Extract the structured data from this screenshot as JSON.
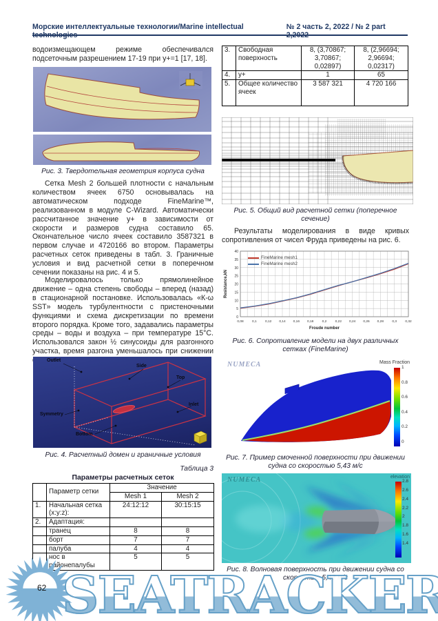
{
  "header": {
    "journal": "Морские интеллектуальные технологии/Marine intellectual technologies",
    "issue": "№ 2 часть 2, 2022 / № 2 part 2,2022"
  },
  "left_column": {
    "para_intro": "водоизмещающем режиме обеспечивался подсеточным разрешением 17-19 при y+=1 [17, 18].",
    "fig3_caption": "Рис. 3. Твердотельная геометрия корпуса судна",
    "para1": "Сетка Mesh 2 большей плотности с начальным количеством ячеек 6750 основывалась на автоматическом подходе FineMarine™, реализованном в модуле C-Wizard. Автоматически рассчитанное значение y+ в зависимости от скорости и размеров судна составило 65. Окончательное число ячеек составило 3587321 в первом случае и 4720166 во втором. Параметры расчетных сеток приведены в табл. 3. Граничные условия и вид расчетной сетки в поперечном сечении показаны на рис. 4 и 5.",
    "para2": "Моделировалось только прямолинейное движение – одна степень свободы – вперед (назад) в стационарной постановке. Использовалась «К-ω SST» модель турбулентности с пристеночными функциями и схема дискретизации по времени второго порядка. Кроме того, задавались параметры среды – воды и воздуха – при температуре 15°С. Использовался закон ½ синусоиды для разгонного участка, время разгона уменьшалось при снижении скорости.",
    "fig4_caption": "Рис. 4. Расчетный домен и граничные условия",
    "fig4_labels": {
      "outlet": "Outlet",
      "side": "Side",
      "top": "Top",
      "inlet": "Inlet",
      "symmetry": "Symmetry",
      "bottom": "Bottom"
    },
    "table_label": "Таблица 3",
    "table_title": "Параметры расчетных сеток",
    "table": {
      "col_param": "Параметр сетки",
      "col_value": "Значение",
      "col_mesh1": "Mesh 1",
      "col_mesh2": "Mesh 2",
      "rows": [
        {
          "num": "1.",
          "param": "Начальная сетка (x:y:z):",
          "mesh1": "24:12:12",
          "mesh2": "30:15:15"
        },
        {
          "num": "2.",
          "param": "Адаптация:",
          "mesh1": "",
          "mesh2": ""
        },
        {
          "num": "",
          "param": "транец",
          "mesh1": "8",
          "mesh2": "8"
        },
        {
          "num": "",
          "param": "борт",
          "mesh1": "7",
          "mesh2": "7"
        },
        {
          "num": "",
          "param": "палуба",
          "mesh1": "4",
          "mesh2": "4"
        },
        {
          "num": "",
          "param": "нос в районепалубы",
          "mesh1": "5",
          "mesh2": "5"
        }
      ]
    }
  },
  "right_column": {
    "table_rows": [
      {
        "num": "3.",
        "param": "Свободная поверхность",
        "mesh1": "8, (3,70867; 3,70867; 0,02897)",
        "mesh2": "8, (2,96694; 2,96694; 0,02317)"
      },
      {
        "num": "4.",
        "param": "y+",
        "mesh1": "1",
        "mesh2": "65"
      },
      {
        "num": "5.",
        "param": "Общее количество ячеек",
        "mesh1": "3 587 321",
        "mesh2": "4 720 166"
      }
    ],
    "fig5_caption": "Рис. 5. Общий вид расчетной сетки (поперечное сечение)",
    "para_results": "Результаты моделирования в виде кривых сопротивления от чисел Фруда приведены на рис. 6.",
    "fig6_caption": "Рис. 6. Сопротивление модели на двух различных сетках (FineMarine)",
    "fig7": {
      "brand": "NUMECA",
      "colorbar_title": "Mass Fraction",
      "colorbar_ticks": [
        "1",
        "0.8",
        "0.6",
        "0.4",
        "0.2",
        "0"
      ]
    },
    "fig7_caption": "Рис. 7. Пример смоченной поверхности при движении судна со скоростью 5,43 м/с",
    "fig8": {
      "brand": "NUMECA",
      "colorbar_title": "elevation",
      "colorbar_ticks": [
        "2.8",
        "2.6",
        "2.4",
        "2.2",
        "2",
        "1.8",
        "1.6",
        "1.4"
      ]
    },
    "fig8_caption": "Рис. 8. Волновая поверхность при движении судна со скоростью 5,43 м/с"
  },
  "footer": {
    "page_number": "62",
    "watermark": "SEATRACKER.RU"
  },
  "colors": {
    "header_blue": "#1f3864",
    "watermark_blue": "#7fb2d6",
    "mesh1_line": "#c0392b",
    "mesh2_line": "#4a72a8"
  },
  "chart_data": {
    "type": "line",
    "title": "",
    "xlabel": "Froude number",
    "ylabel": "Resistance,kN",
    "xlim": [
      0.08,
      0.32
    ],
    "ylim": [
      0,
      40
    ],
    "grid": true,
    "legend_position": "top-left",
    "x": [
      0.08,
      0.1,
      0.12,
      0.14,
      0.16,
      0.18,
      0.2,
      0.22,
      0.24,
      0.26,
      0.28,
      0.3,
      0.32
    ],
    "x_tick_labels": [
      "0,08",
      "0,1",
      "0,12",
      "0,14",
      "0,16",
      "0,18",
      "0,2",
      "0,22",
      "0,24",
      "0,26",
      "0,28",
      "0,3",
      "0,32"
    ],
    "y_ticks": [
      0,
      5,
      10,
      15,
      20,
      25,
      30,
      35,
      40
    ],
    "series": [
      {
        "name": "FineMarine mesh1",
        "color": "#c0392b",
        "values": [
          5.2,
          6.3,
          7.7,
          9.5,
          11.4,
          13.7,
          16.3,
          18.9,
          21.4,
          23.7,
          26.2,
          29.0,
          32.3
        ]
      },
      {
        "name": "FineMarine mesh2",
        "color": "#4a72a8",
        "values": [
          5.4,
          6.5,
          7.9,
          9.7,
          11.6,
          13.9,
          16.5,
          19.1,
          21.3,
          23.9,
          26.5,
          29.4,
          32.6
        ]
      }
    ]
  }
}
